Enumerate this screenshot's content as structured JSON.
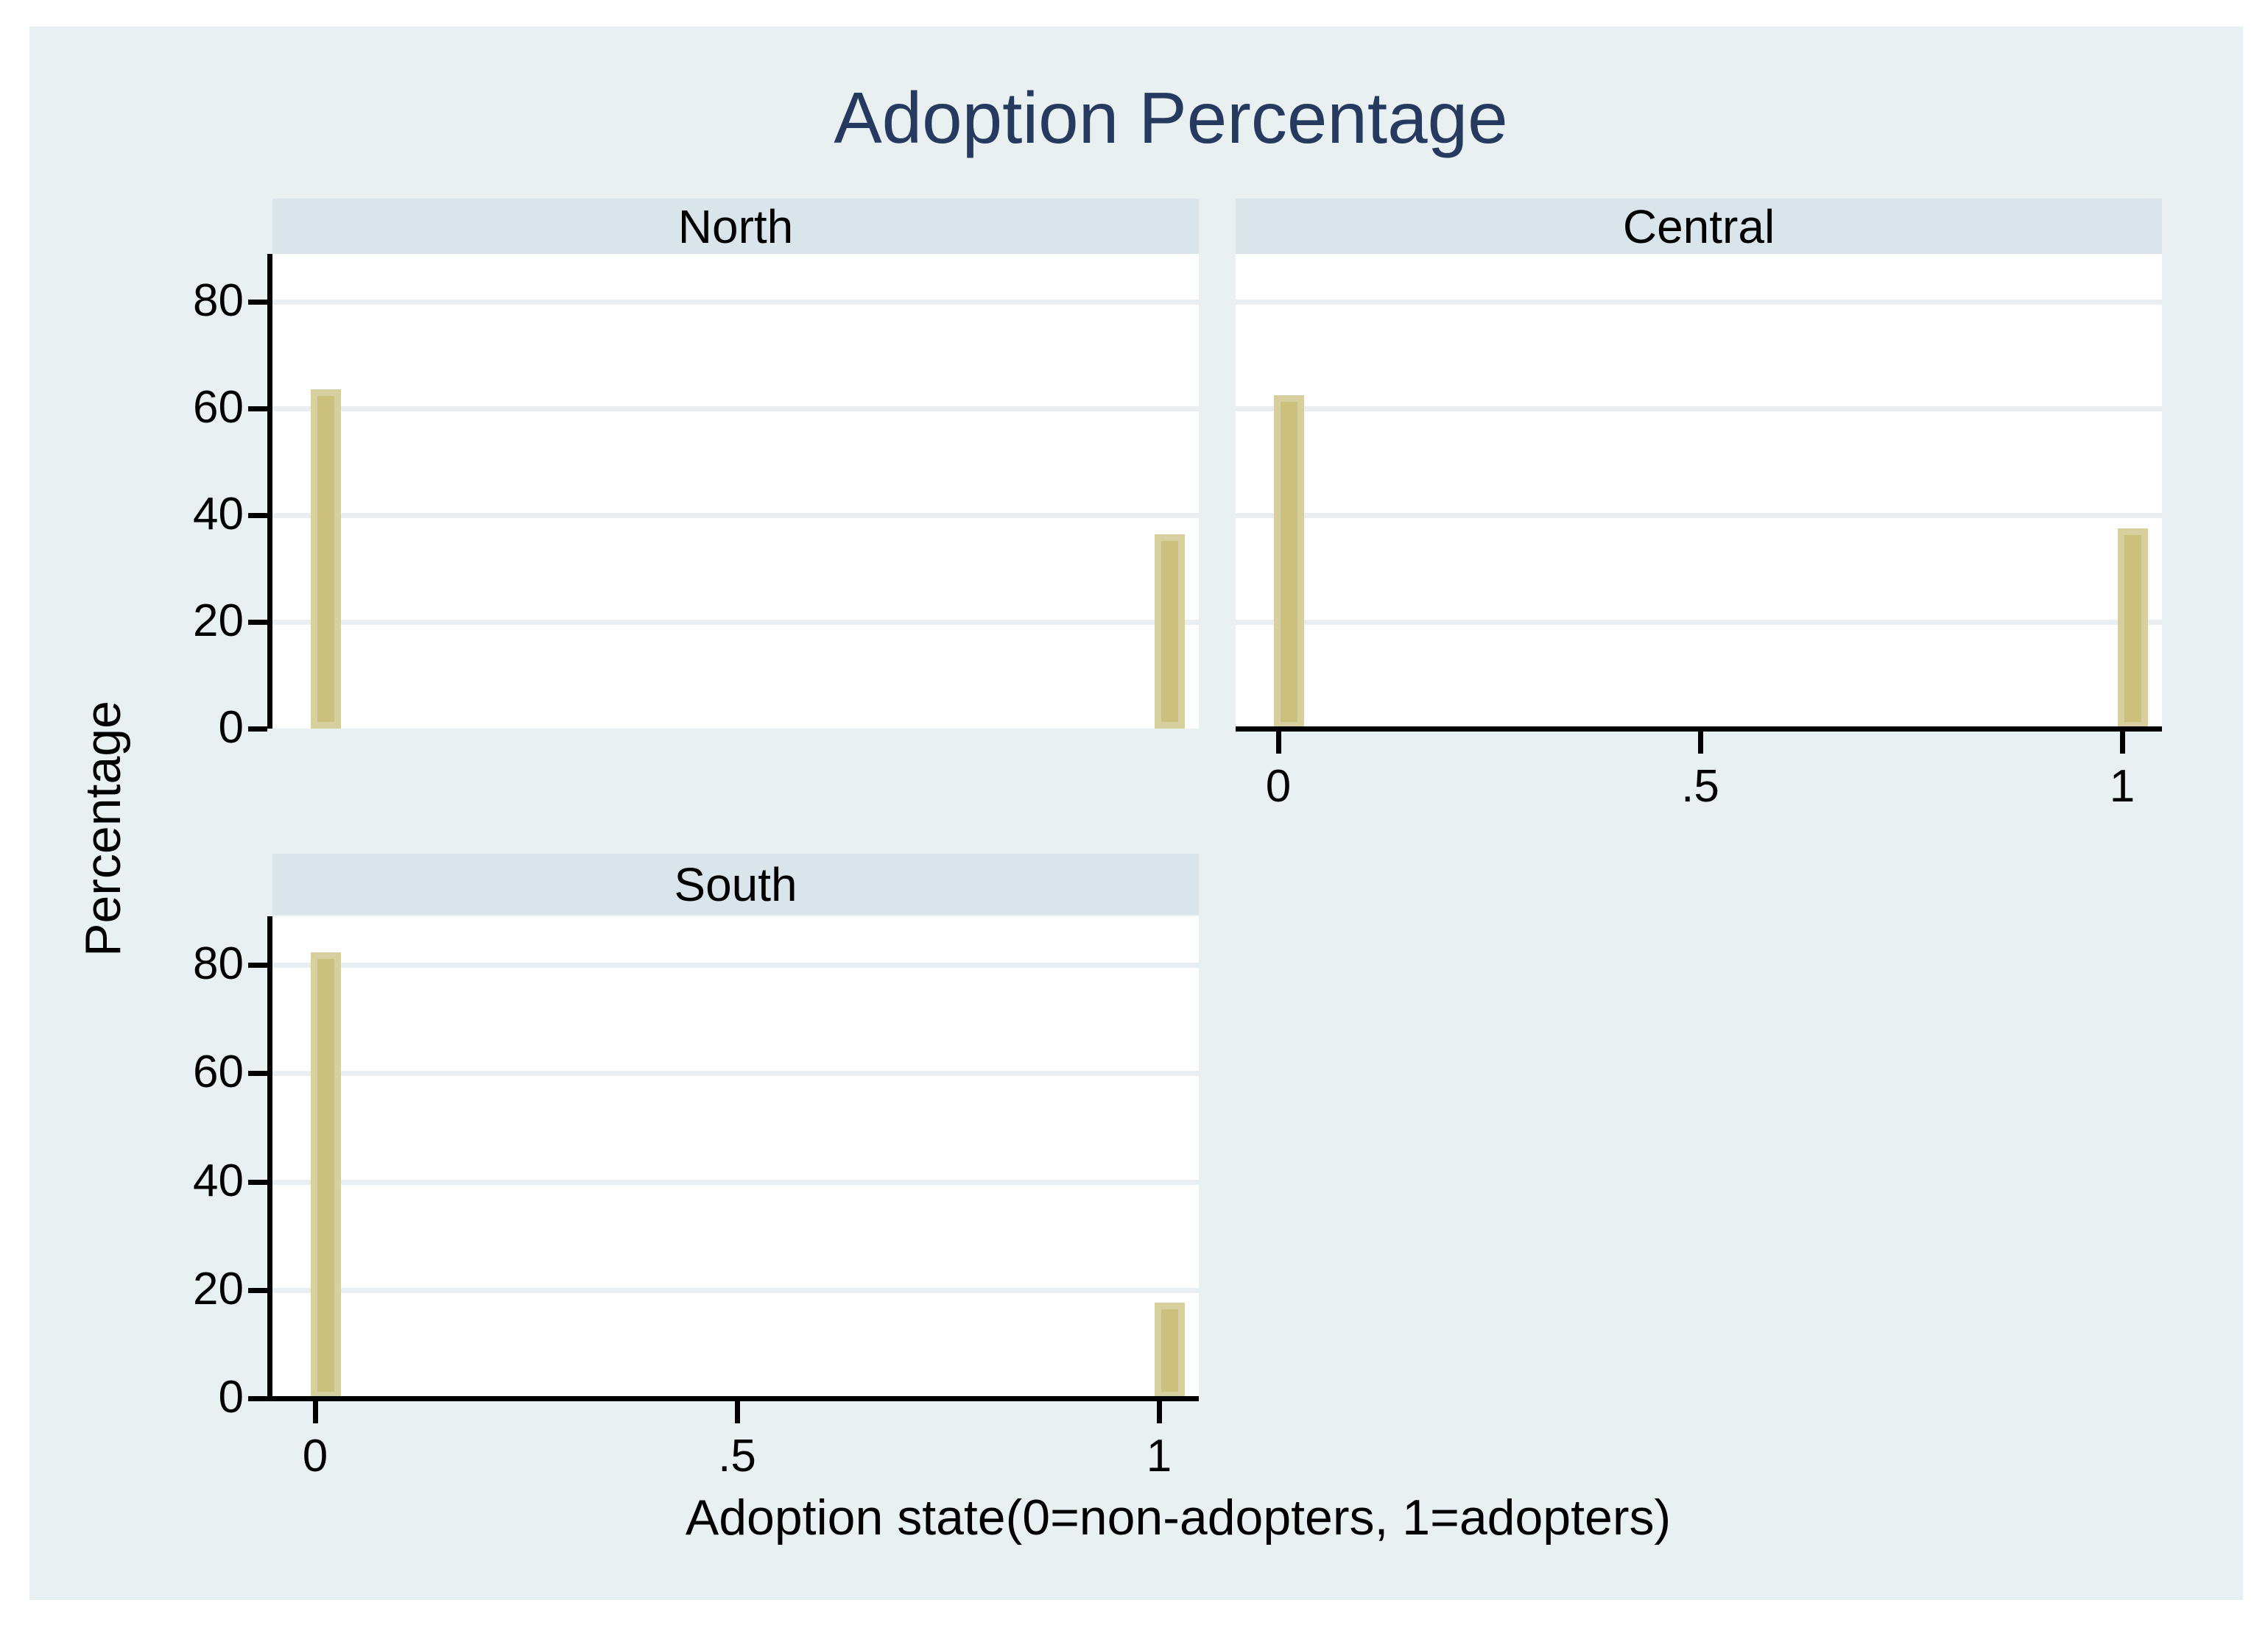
{
  "title": {
    "text": "Adoption Percentage"
  },
  "axes": {
    "y_title": "Percentage",
    "x_title": "Adoption state(0=non-adopters, 1=adopters)"
  },
  "colors": {
    "figure_bg": "#e9f0f2",
    "plot_bg": "#ffffff",
    "header_bg": "#d9e5eb",
    "gridline": "#e8eef1",
    "bar_fill": "#cbc17d",
    "bar_edge": "#d8cf9e",
    "axis": "#000000",
    "text": "#000000",
    "title": "#253a5e"
  },
  "chart_data": {
    "type": "bar",
    "title": "Adoption Percentage",
    "xlabel": "Adoption state(0=non-adopters, 1=adopters)",
    "ylabel": "Percentage",
    "categories": [
      0,
      1
    ],
    "x_ticks": [
      {
        "label": "0",
        "value": 0
      },
      {
        "label": ".5",
        "value": 0.5
      },
      {
        "label": "1",
        "value": 1
      }
    ],
    "y_ticks": [
      {
        "label": "0",
        "value": 0
      },
      {
        "label": "20",
        "value": 20
      },
      {
        "label": "40",
        "value": 40
      },
      {
        "label": "60",
        "value": 60
      },
      {
        "label": "80",
        "value": 80
      }
    ],
    "ylim": [
      0,
      89
    ],
    "grid": true,
    "legend": "none",
    "panels": [
      {
        "name": "North",
        "values": [
          63.6,
          36.4
        ],
        "show_y_axis": true,
        "show_x_axis": false
      },
      {
        "name": "Central",
        "values": [
          62.5,
          37.5
        ],
        "show_y_axis": false,
        "show_x_axis": true
      },
      {
        "name": "South",
        "values": [
          82.4,
          17.6
        ],
        "show_y_axis": true,
        "show_x_axis": true
      }
    ]
  }
}
